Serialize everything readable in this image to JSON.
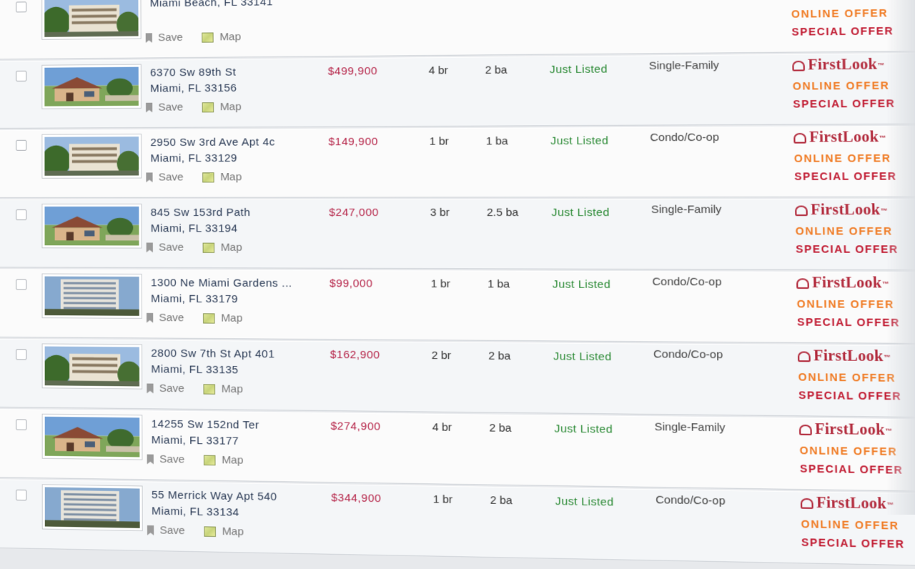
{
  "links": {
    "save": "Save",
    "map": "Map"
  },
  "brand": {
    "name": "FirstLook",
    "tm": "™",
    "online": "ONLINE OFFER",
    "special": "SPECIAL OFFER"
  },
  "listings": [
    {
      "street": "",
      "city": "Miami Beach, FL 33141",
      "price": "",
      "beds": "",
      "baths": "",
      "status": "",
      "type": "",
      "photo": "building"
    },
    {
      "street": "6370 Sw 89th St",
      "city": "Miami, FL 33156",
      "price": "$499,900",
      "beds": "4 br",
      "baths": "2 ba",
      "status": "Just Listed",
      "type": "Single-Family",
      "photo": "house"
    },
    {
      "street": "2950 Sw 3rd Ave Apt 4c",
      "city": "Miami, FL 33129",
      "price": "$149,900",
      "beds": "1 br",
      "baths": "1 ba",
      "status": "Just Listed",
      "type": "Condo/Co-op",
      "photo": "building"
    },
    {
      "street": "845 Sw 153rd Path",
      "city": "Miami, FL 33194",
      "price": "$247,000",
      "beds": "3 br",
      "baths": "2.5 ba",
      "status": "Just Listed",
      "type": "Single-Family",
      "photo": "house"
    },
    {
      "street": "1300 Ne Miami Gardens ...",
      "city": "Miami, FL 33179",
      "price": "$99,000",
      "beds": "1 br",
      "baths": "1 ba",
      "status": "Just Listed",
      "type": "Condo/Co-op",
      "photo": "tower"
    },
    {
      "street": "2800 Sw 7th St Apt 401",
      "city": "Miami, FL 33135",
      "price": "$162,900",
      "beds": "2 br",
      "baths": "2 ba",
      "status": "Just Listed",
      "type": "Condo/Co-op",
      "photo": "building"
    },
    {
      "street": "14255 Sw 152nd Ter",
      "city": "Miami, FL 33177",
      "price": "$274,900",
      "beds": "4 br",
      "baths": "2 ba",
      "status": "Just Listed",
      "type": "Single-Family",
      "photo": "house"
    },
    {
      "street": "55 Merrick Way Apt 540",
      "city": "Miami, FL 33134",
      "price": "$344,900",
      "beds": "1 br",
      "baths": "2 ba",
      "status": "Just Listed",
      "type": "Condo/Co-op",
      "photo": "tower"
    }
  ]
}
